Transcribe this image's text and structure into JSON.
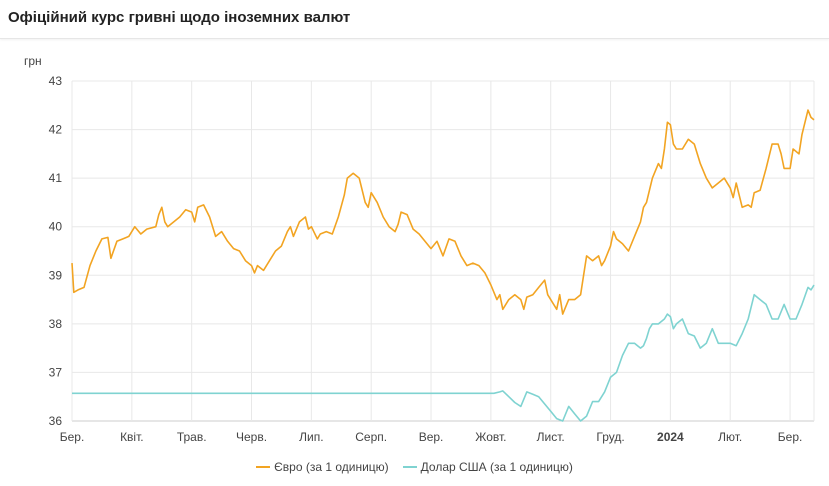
{
  "header": {
    "title": "Офіційний курс гривні щодо іноземних валют"
  },
  "colors": {
    "euro": "#f2a422",
    "usd": "#7fd3d1",
    "grid": "#e8e8e8",
    "axis": "#cccccc"
  },
  "chart_data": {
    "type": "line",
    "title": "Офіційний курс гривні щодо іноземних валют",
    "ylabel": "грн",
    "xlabel": "",
    "ylim": [
      36,
      43
    ],
    "yticks": [
      36,
      37,
      38,
      39,
      40,
      41,
      42,
      43
    ],
    "grid": true,
    "legend_position": "bottom",
    "x_ticks": [
      "Бер.",
      "Квіт.",
      "Трав.",
      "Черв.",
      "Лип.",
      "Серп.",
      "Вер.",
      "Жовт.",
      "Лист.",
      "Груд.",
      "2024",
      "Лют.",
      "Бер."
    ],
    "x_tick_bold": "2024",
    "x_range_months": [
      0,
      12.4
    ],
    "series": [
      {
        "name": "Євро (за 1 одиницю)",
        "points": [
          [
            0.0,
            39.25
          ],
          [
            0.03,
            38.65
          ],
          [
            0.1,
            38.7
          ],
          [
            0.2,
            38.75
          ],
          [
            0.3,
            39.2
          ],
          [
            0.4,
            39.5
          ],
          [
            0.5,
            39.75
          ],
          [
            0.6,
            39.78
          ],
          [
            0.65,
            39.35
          ],
          [
            0.75,
            39.7
          ],
          [
            0.85,
            39.75
          ],
          [
            0.95,
            39.8
          ],
          [
            1.05,
            40.0
          ],
          [
            1.15,
            39.85
          ],
          [
            1.25,
            39.95
          ],
          [
            1.4,
            40.0
          ],
          [
            1.45,
            40.25
          ],
          [
            1.5,
            40.4
          ],
          [
            1.55,
            40.1
          ],
          [
            1.6,
            40.0
          ],
          [
            1.7,
            40.1
          ],
          [
            1.8,
            40.2
          ],
          [
            1.9,
            40.35
          ],
          [
            2.0,
            40.3
          ],
          [
            2.05,
            40.1
          ],
          [
            2.1,
            40.4
          ],
          [
            2.2,
            40.45
          ],
          [
            2.3,
            40.2
          ],
          [
            2.4,
            39.8
          ],
          [
            2.5,
            39.9
          ],
          [
            2.6,
            39.7
          ],
          [
            2.7,
            39.55
          ],
          [
            2.8,
            39.5
          ],
          [
            2.9,
            39.3
          ],
          [
            3.0,
            39.2
          ],
          [
            3.05,
            39.05
          ],
          [
            3.1,
            39.2
          ],
          [
            3.2,
            39.1
          ],
          [
            3.3,
            39.3
          ],
          [
            3.4,
            39.5
          ],
          [
            3.5,
            39.6
          ],
          [
            3.6,
            39.9
          ],
          [
            3.65,
            40.0
          ],
          [
            3.7,
            39.8
          ],
          [
            3.8,
            40.1
          ],
          [
            3.9,
            40.2
          ],
          [
            3.95,
            39.95
          ],
          [
            4.0,
            40.0
          ],
          [
            4.1,
            39.75
          ],
          [
            4.15,
            39.85
          ],
          [
            4.25,
            39.9
          ],
          [
            4.35,
            39.85
          ],
          [
            4.45,
            40.2
          ],
          [
            4.55,
            40.65
          ],
          [
            4.6,
            41.0
          ],
          [
            4.7,
            41.1
          ],
          [
            4.8,
            41.0
          ],
          [
            4.9,
            40.5
          ],
          [
            4.95,
            40.4
          ],
          [
            5.0,
            40.7
          ],
          [
            5.1,
            40.5
          ],
          [
            5.2,
            40.2
          ],
          [
            5.3,
            40.0
          ],
          [
            5.4,
            39.9
          ],
          [
            5.45,
            40.05
          ],
          [
            5.5,
            40.3
          ],
          [
            5.6,
            40.25
          ],
          [
            5.7,
            39.95
          ],
          [
            5.8,
            39.85
          ],
          [
            5.9,
            39.7
          ],
          [
            6.0,
            39.55
          ],
          [
            6.1,
            39.7
          ],
          [
            6.2,
            39.4
          ],
          [
            6.3,
            39.75
          ],
          [
            6.4,
            39.7
          ],
          [
            6.5,
            39.4
          ],
          [
            6.6,
            39.2
          ],
          [
            6.7,
            39.25
          ],
          [
            6.8,
            39.2
          ],
          [
            6.9,
            39.05
          ],
          [
            7.0,
            38.8
          ],
          [
            7.1,
            38.5
          ],
          [
            7.15,
            38.6
          ],
          [
            7.2,
            38.3
          ],
          [
            7.3,
            38.5
          ],
          [
            7.4,
            38.6
          ],
          [
            7.5,
            38.5
          ],
          [
            7.55,
            38.3
          ],
          [
            7.6,
            38.55
          ],
          [
            7.7,
            38.6
          ],
          [
            7.8,
            38.75
          ],
          [
            7.9,
            38.9
          ],
          [
            7.95,
            38.6
          ],
          [
            8.0,
            38.5
          ],
          [
            8.05,
            38.4
          ],
          [
            8.1,
            38.3
          ],
          [
            8.15,
            38.6
          ],
          [
            8.2,
            38.2
          ],
          [
            8.3,
            38.5
          ],
          [
            8.4,
            38.5
          ],
          [
            8.5,
            38.6
          ],
          [
            8.55,
            39.0
          ],
          [
            8.6,
            39.4
          ],
          [
            8.7,
            39.3
          ],
          [
            8.8,
            39.4
          ],
          [
            8.85,
            39.2
          ],
          [
            8.9,
            39.3
          ],
          [
            9.0,
            39.6
          ],
          [
            9.05,
            39.9
          ],
          [
            9.1,
            39.75
          ],
          [
            9.2,
            39.65
          ],
          [
            9.3,
            39.5
          ],
          [
            9.4,
            39.8
          ],
          [
            9.5,
            40.1
          ],
          [
            9.55,
            40.4
          ],
          [
            9.6,
            40.5
          ],
          [
            9.7,
            41.0
          ],
          [
            9.8,
            41.3
          ],
          [
            9.85,
            41.2
          ],
          [
            9.9,
            41.6
          ],
          [
            9.95,
            42.15
          ],
          [
            10.0,
            42.1
          ],
          [
            10.05,
            41.7
          ],
          [
            10.1,
            41.6
          ],
          [
            10.2,
            41.6
          ],
          [
            10.3,
            41.8
          ],
          [
            10.4,
            41.7
          ],
          [
            10.5,
            41.3
          ],
          [
            10.6,
            41.0
          ],
          [
            10.7,
            40.8
          ],
          [
            10.8,
            40.9
          ],
          [
            10.9,
            41.0
          ],
          [
            11.0,
            40.8
          ],
          [
            11.05,
            40.6
          ],
          [
            11.1,
            40.9
          ],
          [
            11.2,
            40.4
          ],
          [
            11.3,
            40.45
          ],
          [
            11.35,
            40.4
          ],
          [
            11.4,
            40.7
          ],
          [
            11.5,
            40.75
          ],
          [
            11.6,
            41.2
          ],
          [
            11.7,
            41.7
          ],
          [
            11.8,
            41.7
          ],
          [
            11.85,
            41.5
          ],
          [
            11.9,
            41.2
          ],
          [
            12.0,
            41.2
          ],
          [
            12.05,
            41.6
          ],
          [
            12.15,
            41.5
          ],
          [
            12.2,
            41.9
          ],
          [
            12.3,
            42.4
          ],
          [
            12.35,
            42.25
          ],
          [
            12.4,
            42.2
          ]
        ]
      },
      {
        "name": "Долар США (за 1 одиницю)",
        "points": [
          [
            0.0,
            36.57
          ],
          [
            7.05,
            36.57
          ],
          [
            7.15,
            36.6
          ],
          [
            7.2,
            36.62
          ],
          [
            7.3,
            36.5
          ],
          [
            7.4,
            36.38
          ],
          [
            7.5,
            36.3
          ],
          [
            7.6,
            36.6
          ],
          [
            7.7,
            36.55
          ],
          [
            7.8,
            36.5
          ],
          [
            7.9,
            36.35
          ],
          [
            8.0,
            36.2
          ],
          [
            8.1,
            36.05
          ],
          [
            8.2,
            36.0
          ],
          [
            8.3,
            36.3
          ],
          [
            8.4,
            36.15
          ],
          [
            8.5,
            36.0
          ],
          [
            8.6,
            36.1
          ],
          [
            8.7,
            36.4
          ],
          [
            8.8,
            36.4
          ],
          [
            8.9,
            36.6
          ],
          [
            9.0,
            36.9
          ],
          [
            9.1,
            37.0
          ],
          [
            9.2,
            37.35
          ],
          [
            9.3,
            37.6
          ],
          [
            9.4,
            37.6
          ],
          [
            9.5,
            37.5
          ],
          [
            9.55,
            37.55
          ],
          [
            9.6,
            37.7
          ],
          [
            9.65,
            37.9
          ],
          [
            9.7,
            38.0
          ],
          [
            9.8,
            38.0
          ],
          [
            9.9,
            38.1
          ],
          [
            9.95,
            38.2
          ],
          [
            10.0,
            38.15
          ],
          [
            10.05,
            37.9
          ],
          [
            10.1,
            38.0
          ],
          [
            10.2,
            38.1
          ],
          [
            10.3,
            37.8
          ],
          [
            10.4,
            37.75
          ],
          [
            10.5,
            37.5
          ],
          [
            10.6,
            37.6
          ],
          [
            10.7,
            37.9
          ],
          [
            10.8,
            37.6
          ],
          [
            10.9,
            37.6
          ],
          [
            11.0,
            37.6
          ],
          [
            11.1,
            37.55
          ],
          [
            11.2,
            37.8
          ],
          [
            11.3,
            38.1
          ],
          [
            11.4,
            38.6
          ],
          [
            11.5,
            38.5
          ],
          [
            11.6,
            38.4
          ],
          [
            11.7,
            38.1
          ],
          [
            11.8,
            38.1
          ],
          [
            11.9,
            38.4
          ],
          [
            12.0,
            38.1
          ],
          [
            12.1,
            38.1
          ],
          [
            12.2,
            38.4
          ],
          [
            12.3,
            38.75
          ],
          [
            12.35,
            38.7
          ],
          [
            12.4,
            38.8
          ]
        ]
      }
    ]
  }
}
